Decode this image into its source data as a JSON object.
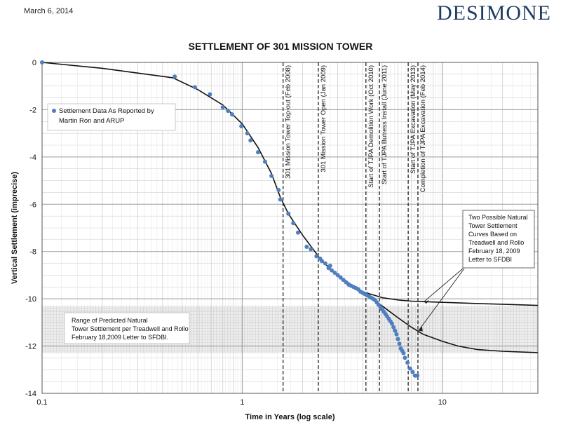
{
  "header": {
    "date": "March 6, 2014",
    "brand": "DESIMONE"
  },
  "chart_data": {
    "type": "scatter",
    "title": "SETTLEMENT OF 301 MISSION TOWER",
    "xlabel": "Time in Years (log scale)",
    "ylabel": "Vertical Settlement (imprecise)",
    "xscale": "log",
    "xlim": [
      0.1,
      30
    ],
    "ylim": [
      -14,
      0
    ],
    "x_ticks": [
      0.1,
      1,
      10
    ],
    "x_tick_labels": [
      "0.1",
      "1",
      "10"
    ],
    "y_ticks": [
      0,
      -2,
      -4,
      -6,
      -8,
      -10,
      -12,
      -14
    ],
    "y_tick_labels": [
      "0",
      "-2",
      "-4",
      "-6",
      "-8",
      "-10",
      "-12",
      "-14"
    ],
    "grid": true,
    "colors": {
      "points": "#4f7fbf",
      "curve": "#111111",
      "band": "#d9d9d9"
    },
    "band": {
      "y_range": [
        -12.3,
        -10.3
      ],
      "label": "Range of Predicted Natural Tower Settlement per Treadwell and Rollo February 18,2009 Letter to SFDBI."
    },
    "legend": {
      "position": "upper-left",
      "label": "Settlement Data As Reported by Martin Ron and ARUP"
    },
    "callout": {
      "label": "Two Possible Natural Tower Settlement Curves Based on Treadwell and Rollo February 18, 2009 Letter to SFDBI"
    },
    "series": [
      {
        "name": "Settlement Data As Reported by Martin Ron and ARUP",
        "x": [
          0.1,
          0.46,
          0.58,
          0.69,
          0.8,
          0.85,
          0.89,
          0.99,
          1.06,
          1.1,
          1.2,
          1.3,
          1.4,
          1.52,
          1.55,
          1.7,
          1.8,
          1.9,
          2.1,
          2.2,
          2.35,
          2.45,
          2.5,
          2.6,
          2.7,
          2.75,
          2.8,
          2.9,
          3.0,
          3.1,
          3.2,
          3.3,
          3.4,
          3.5,
          3.6,
          3.7,
          3.8,
          3.9,
          4.0,
          4.1,
          4.2,
          4.3,
          4.4,
          4.5,
          4.6,
          4.7,
          4.8,
          4.9,
          5.0,
          5.1,
          5.2,
          5.3,
          5.4,
          5.5,
          5.6,
          5.7,
          5.8,
          5.9,
          6.0,
          6.1,
          6.2,
          6.3,
          6.4,
          6.5,
          6.7,
          6.9,
          7.1,
          7.3,
          7.5
        ],
        "y": [
          0,
          -0.6,
          -1.05,
          -1.35,
          -1.9,
          -2.05,
          -2.2,
          -2.7,
          -3.0,
          -3.3,
          -3.8,
          -4.2,
          -4.8,
          -5.4,
          -5.8,
          -6.4,
          -6.8,
          -7.2,
          -7.8,
          -7.9,
          -8.2,
          -8.3,
          -8.4,
          -8.5,
          -8.7,
          -8.6,
          -8.8,
          -8.9,
          -9.0,
          -9.1,
          -9.2,
          -9.3,
          -9.4,
          -9.45,
          -9.5,
          -9.55,
          -9.6,
          -9.7,
          -9.75,
          -9.8,
          -9.85,
          -9.9,
          -9.95,
          -10.0,
          -10.05,
          -10.15,
          -10.25,
          -10.35,
          -10.45,
          -10.55,
          -10.65,
          -10.75,
          -10.85,
          -10.95,
          -11.05,
          -11.2,
          -11.35,
          -11.5,
          -11.7,
          -11.9,
          -12.1,
          -12.2,
          -12.3,
          -12.5,
          -12.7,
          -12.95,
          -13.1,
          -13.25,
          -13.25
        ]
      },
      {
        "name": "",
        "x": [
          0.1,
          0.2,
          0.3,
          0.45,
          0.6,
          0.8,
          1.0,
          1.2,
          1.4,
          1.55,
          1.7,
          2.0,
          2.5,
          3.0,
          3.5,
          4.0,
          5.0,
          6.0,
          7.0,
          8.0,
          10,
          15,
          20,
          30
        ],
        "y": [
          0,
          -0.25,
          -0.45,
          -0.65,
          -1.15,
          -1.8,
          -2.6,
          -3.6,
          -4.7,
          -5.7,
          -6.4,
          -7.3,
          -8.4,
          -9.0,
          -9.4,
          -9.7,
          -9.95,
          -10.05,
          -10.1,
          -10.12,
          -10.15,
          -10.2,
          -10.23,
          -10.28
        ]
      },
      {
        "name": "",
        "x": [
          4.0,
          5.0,
          6.0,
          7.0,
          8.0,
          10,
          12,
          15,
          20,
          30
        ],
        "y": [
          -9.7,
          -10.3,
          -10.8,
          -11.2,
          -11.5,
          -11.8,
          -12.0,
          -12.15,
          -12.22,
          -12.28
        ]
      }
    ],
    "events": [
      {
        "x": 1.6,
        "label": "301 Mission Tower Top-out (Feb 2008)"
      },
      {
        "x": 2.4,
        "label": "301 Mission Tower Open (Jan 2009)"
      },
      {
        "x": 4.15,
        "label": "Start of TJPA Demolition Work (Oct 2010)"
      },
      {
        "x": 4.85,
        "label": "Start of TJPA Butress Install (June 2011)"
      },
      {
        "x": 6.75,
        "label": "Start of TJPA Excavation (May 2013)"
      },
      {
        "x": 7.55,
        "label": "Completion of TJPA Excavation (Feb 2014)"
      }
    ]
  }
}
